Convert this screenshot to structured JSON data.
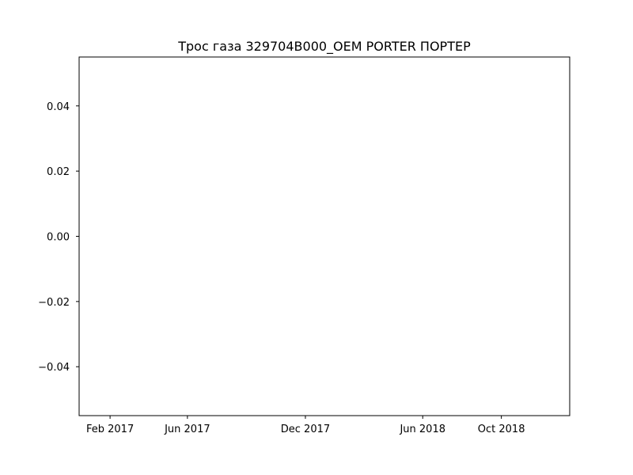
{
  "chart_data": {
    "type": "line",
    "title": "Трос газа 329704B000_OEM PORTER ПОРТЕР",
    "xlabel": "",
    "ylabel": "",
    "series": [],
    "x_axis": {
      "kind": "date",
      "range": [
        "2016-12-15",
        "2019-01-15"
      ],
      "ticks": [
        {
          "label": "Feb 2017",
          "value": "2017-02-01"
        },
        {
          "label": "Jun 2017",
          "value": "2017-06-01"
        },
        {
          "label": "Dec 2017",
          "value": "2017-12-01"
        },
        {
          "label": "Jun 2018",
          "value": "2018-06-01"
        },
        {
          "label": "Oct 2018",
          "value": "2018-10-01"
        }
      ]
    },
    "y_axis": {
      "range": [
        -0.055,
        0.055
      ],
      "ticks": [
        {
          "label": "0.04",
          "value": 0.04
        },
        {
          "label": "0.02",
          "value": 0.02
        },
        {
          "label": "0.00",
          "value": 0.0
        },
        {
          "label": "−0.02",
          "value": -0.02
        },
        {
          "label": "−0.04",
          "value": -0.04
        }
      ]
    },
    "grid": false,
    "legend": "none"
  }
}
